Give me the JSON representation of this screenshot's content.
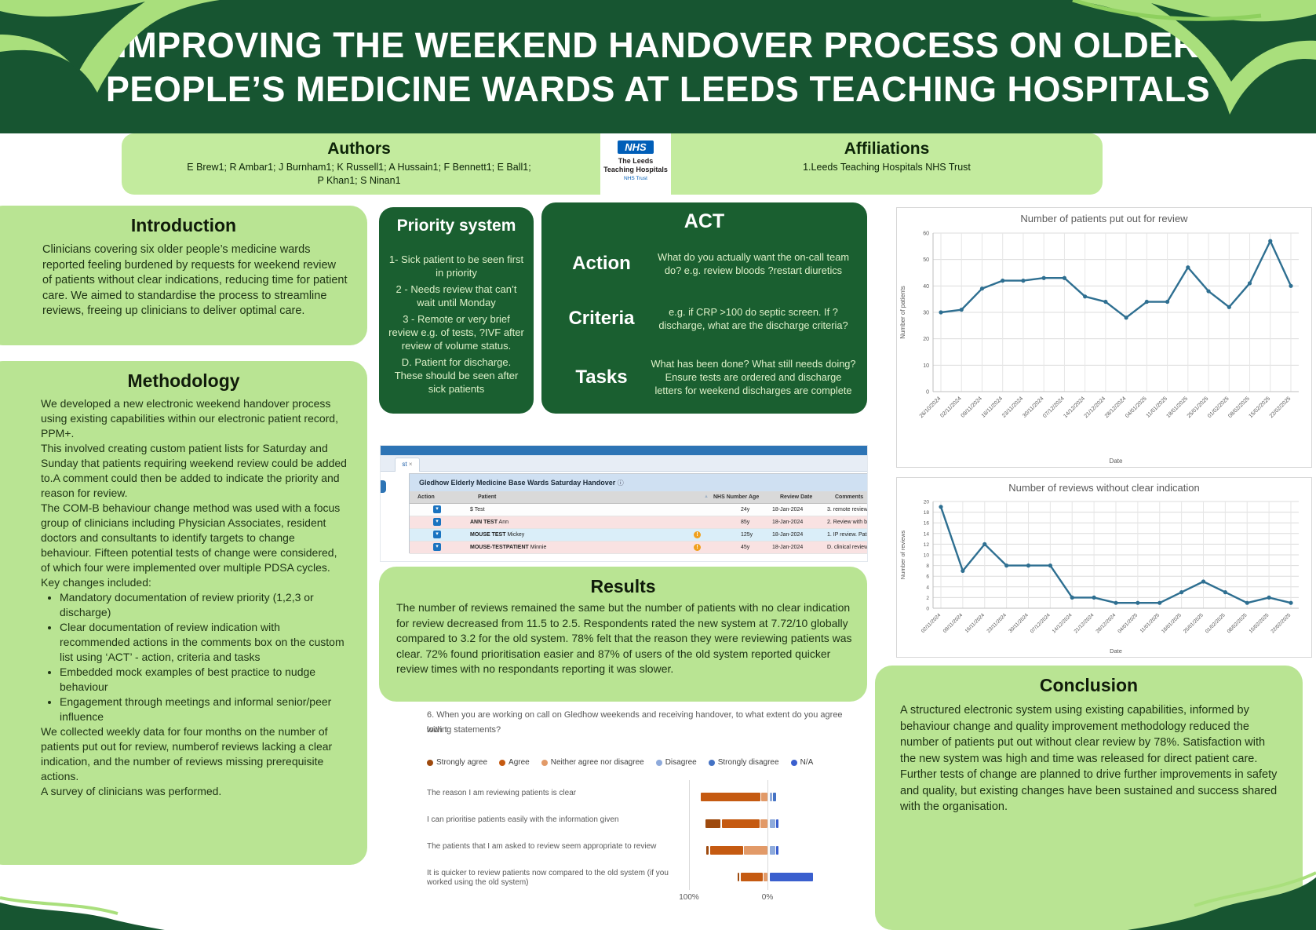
{
  "poster": {
    "title_line1": "IMPROVING THE WEEKEND HANDOVER PROCESS ON OLDER",
    "title_line2": "PEOPLE’S MEDICINE WARDS AT LEEDS TEACHING HOSPITALS"
  },
  "authors": {
    "heading": "Authors",
    "line1": "E Brew1; R Ambar1; J Burnham1; K Russell1; A Hussain1; F Bennett1; E Ball1;",
    "line2": "P Khan1; S Ninan1"
  },
  "affiliations": {
    "heading": "Affiliations",
    "text": "1.Leeds Teaching Hospitals NHS Trust"
  },
  "nhs_logo": {
    "nhs": "NHS",
    "org_line1": "The Leeds",
    "org_line2": "Teaching Hospitals",
    "org_line3": "NHS Trust"
  },
  "introduction": {
    "heading": "Introduction",
    "body": "Clinicians covering six older people’s medicine wards reported feeling burdened by requests for weekend review of patients without clear indications, reducing time for patient care. We aimed to standardise the process to streamline reviews, freeing up clinicians to deliver optimal care."
  },
  "methodology": {
    "heading": "Methodology",
    "para1": "We developed a new electronic weekend handover process using existing capabilities within our electronic patient record, PPM+.",
    "para2": "This involved creating custom patient lists for Saturday and Sunday that patients requiring weekend review could be added to.A comment could then be added to indicate the priority and reason for review.",
    "para3": "The COM-B behaviour change method was used with a focus group of clinicians including Physician Associates, resident doctors and consultants to identify targets to change behaviour. Fifteen potential tests of change were considered, of which four were implemented over multiple PDSA cycles.",
    "para4": "Key changes included:",
    "bullets": [
      "Mandatory documentation of review priority (1,2,3 or discharge)",
      "Clear documentation of review indication with recommended actions in the comments box on the custom list using ‘ACT’ - action, criteria and tasks",
      "Embedded mock examples of best practice to nudge behaviour",
      "Engagement through meetings and informal senior/peer influence"
    ],
    "para5": "We collected weekly data for four months on the number of patients put out for review, numberof reviews lacking a clear indication, and the number of reviews missing prerequisite actions.",
    "para6": "A survey of clinicians was performed."
  },
  "priority_system": {
    "heading": "Priority system",
    "items": [
      "1- Sick patient to be seen first in priority",
      "2 - Needs review that can’t wait until Monday",
      "3 - Remote or very brief review e.g. of tests, ?IVF after review of volume status.",
      "D. Patient for discharge. These should be seen after sick patients"
    ]
  },
  "act": {
    "heading": "ACT",
    "rows": [
      {
        "label": "Action",
        "text": "What do you actually want the on-call team do? e.g. review bloods ?restart diuretics"
      },
      {
        "label": "Criteria",
        "text": "e.g. if CRP >100 do septic screen. If ?discharge, what are the discharge criteria?"
      },
      {
        "label": "Tasks",
        "text": "What has been done? What still needs doing? Ensure tests are ordered and discharge letters for weekend discharges are complete"
      }
    ]
  },
  "ppm_screenshot": {
    "tab_label": "st",
    "tab_close": "×",
    "list_title": "Gledhow Elderly Medicine Base Wards Saturday Handover",
    "list_title_icon": "ⓘ",
    "columns": [
      "Action",
      "Patient",
      "NHS Number",
      "Age",
      "Review Date",
      "Comments"
    ],
    "rows": [
      {
        "name_bold": "",
        "name_rest": "$ Test",
        "age": "24y",
        "review_date": "18-Jan-2024",
        "comment": "3. remote review of bloods. please...",
        "row_color": "white",
        "warning": false
      },
      {
        "name_bold": "ANN TEST",
        "name_rest": " Ann",
        "age": "85y",
        "review_date": "18-Jan-2024",
        "comment": "2. Review with bloods ?IVOS...",
        "row_color": "pink",
        "warning": false
      },
      {
        "name_bold": "MOUSE TEST",
        "name_rest": " Mickey",
        "age": "125y",
        "review_date": "18-Jan-2024",
        "comment": "1. IP review. Patient treated for...",
        "row_color": "blue",
        "warning": true
      },
      {
        "name_bold": "MOUSE-TESTPATIENT",
        "name_rest": " Minnie",
        "age": "45y",
        "review_date": "18-Jan-2024",
        "comment": "D. clinical review. Admitted...",
        "row_color": "pink",
        "warning": true
      }
    ]
  },
  "results": {
    "heading": "Results",
    "body": "The number of reviews remained the same but the number of patients with no clear indication for review decreased from 11.5 to 2.5. Respondents rated the new system at 7.72/10 globally compared to 3.2 for the old system. 78% felt that the reason they were reviewing patients was clear. 72% found prioritisation easier and 87% of users of the old system reported quicker review times with no respondants reporting it was slower."
  },
  "conclusion": {
    "heading": "Conclusion",
    "para1": "A structured electronic system using existing capabilities, informed by behaviour change and quality improvement methodology reduced the number of patients put out without clear review by 78%. Satisfaction with the new system was high and time was released for direct patient care.",
    "para2": " Further tests of change are planned to drive further improvements in safety and quality, but existing changes have been sustained and success shared with the organisation."
  },
  "chart_data": [
    {
      "type": "line",
      "title": "Number of patients put out for review",
      "xlabel": "Date",
      "ylabel": "Number of patients",
      "ylim": [
        0,
        60
      ],
      "ystep": 10,
      "grid": true,
      "legend_position": "none",
      "line_color": "#2e6f91",
      "x": [
        "26/10/2024",
        "02/11/2024",
        "09/11/2024",
        "16/11/2024",
        "23/11/2024",
        "30/11/2024",
        "07/12/2024",
        "14/12/2024",
        "21/12/2024",
        "28/12/2024",
        "04/01/2025",
        "11/01/2025",
        "18/01/2025",
        "25/01/2025",
        "01/02/2025",
        "08/02/2025",
        "15/02/2025",
        "22/02/2025"
      ],
      "values": [
        30,
        31,
        39,
        42,
        42,
        43,
        43,
        36,
        34,
        28,
        34,
        34,
        47,
        38,
        32,
        41,
        57,
        40
      ]
    },
    {
      "type": "line",
      "title": "Number of reviews without clear indication",
      "xlabel": "Date",
      "ylabel": "Number of reviews",
      "ylim": [
        0,
        20
      ],
      "ystep": 2,
      "grid": true,
      "legend_position": "none",
      "line_color": "#2e6f91",
      "x": [
        "02/11/2024",
        "09/11/2024",
        "16/11/2024",
        "23/11/2024",
        "30/11/2024",
        "07/12/2024",
        "14/12/2024",
        "21/12/2024",
        "28/12/2024",
        "04/01/2025",
        "11/01/2025",
        "18/01/2025",
        "25/01/2025",
        "01/02/2025",
        "08/02/2025",
        "15/02/2025",
        "22/02/2025"
      ],
      "values": [
        19,
        7,
        12,
        8,
        8,
        8,
        2,
        2,
        1,
        1,
        1,
        3,
        5,
        3,
        1,
        2,
        1
      ]
    },
    {
      "type": "bar",
      "subtype": "diverging_stacked_likert",
      "question_line1": "6. When you are working on call on Gledhow weekends and receiving handover, to what extent do you agree with t",
      "question_line2": "lowing statements?",
      "legend": [
        {
          "label": "Strongly agree",
          "color": "#9e4a0e"
        },
        {
          "label": "Agree",
          "color": "#c55a11"
        },
        {
          "label": "Neither agree nor disagree",
          "color": "#e29a68"
        },
        {
          "label": "Disagree",
          "color": "#8eaadb"
        },
        {
          "label": "Strongly disagree",
          "color": "#4472c4"
        },
        {
          "label": "N/A",
          "color": "#3a5fce"
        }
      ],
      "categories": [
        "The reason I am reviewing patients is clear",
        "I can prioritise patients easily with the information given",
        "The patients that I am asked to review seem appropriate to review",
        "It is quicker to review patients now compared to the old system (if you worked using the old system)"
      ],
      "series": [
        {
          "name": "Strongly agree",
          "values": [
            0,
            19,
            3,
            2
          ]
        },
        {
          "name": "Agree",
          "values": [
            76,
            48,
            42,
            28
          ]
        },
        {
          "name": "Neither agree nor disagree",
          "values": [
            8,
            9,
            30,
            5
          ]
        },
        {
          "name": "Disagree",
          "values": [
            3,
            7,
            7,
            0
          ]
        },
        {
          "name": "Strongly disagree",
          "values": [
            4,
            0,
            0,
            0
          ]
        },
        {
          "name": "N/A",
          "values": [
            0,
            3,
            3,
            55
          ]
        }
      ],
      "axis_labels": [
        "100%",
        "0%"
      ]
    }
  ]
}
